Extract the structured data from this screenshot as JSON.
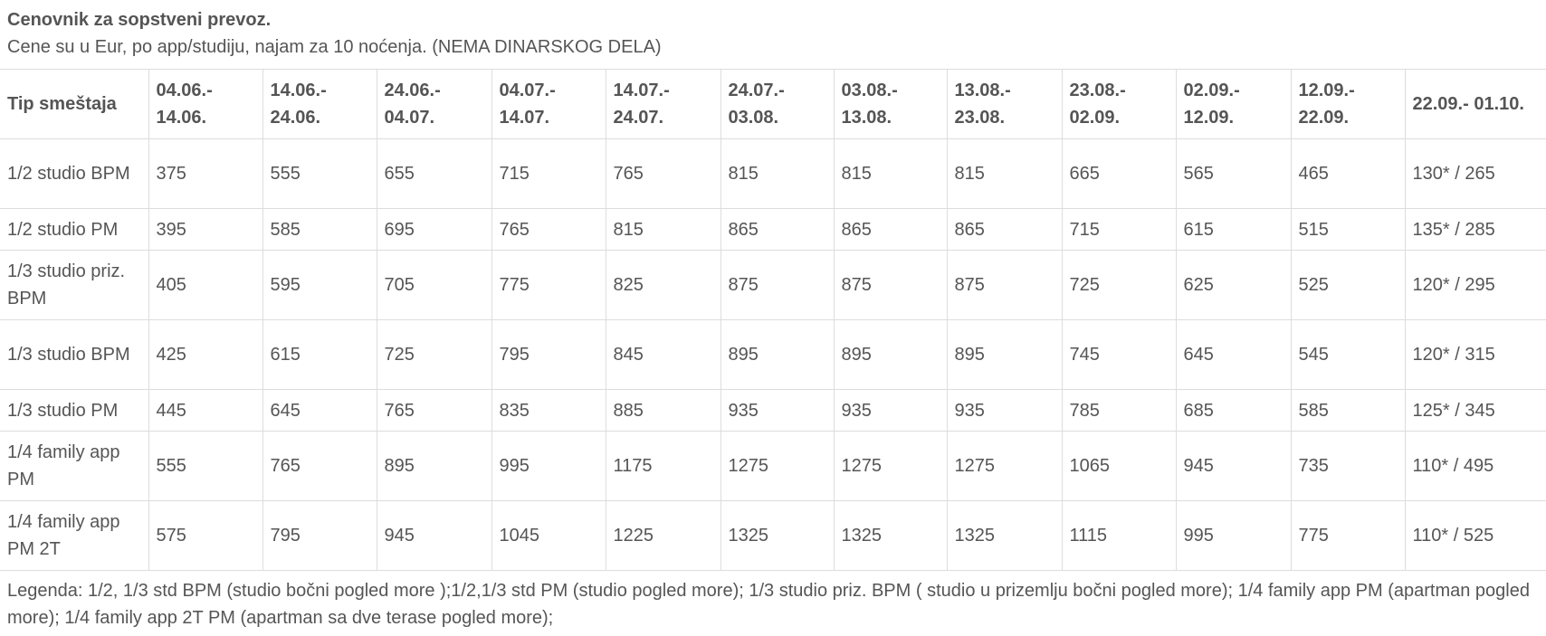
{
  "title": "Cenovnik za sopstveni prevoz.",
  "subtitle": "Cene su u Eur, po app/studiju, najam za 10 noćenja. (NEMA DINARSKOG DELA)",
  "table": {
    "header": [
      "Tip smeštaja",
      "04.06.- 14.06.",
      "14.06.- 24.06.",
      "24.06.- 04.07.",
      "04.07.- 14.07.",
      "14.07.- 24.07.",
      "24.07.- 03.08.",
      "03.08.- 13.08.",
      "13.08.- 23.08.",
      "23.08.- 02.09.",
      "02.09.- 12.09.",
      "12.09.- 22.09.",
      "22.09.- 01.10."
    ],
    "rows": [
      [
        "1/2 studio BPM",
        375,
        555,
        655,
        715,
        765,
        815,
        815,
        815,
        665,
        565,
        465,
        "130* / 265"
      ],
      [
        "1/2 studio PM",
        395,
        585,
        695,
        765,
        815,
        865,
        865,
        865,
        715,
        615,
        515,
        "135* / 285"
      ],
      [
        "1/3 studio priz. BPM",
        405,
        595,
        705,
        775,
        825,
        875,
        875,
        875,
        725,
        625,
        525,
        "120* / 295"
      ],
      [
        "1/3 studio BPM",
        425,
        615,
        725,
        795,
        845,
        895,
        895,
        895,
        745,
        645,
        545,
        "120* / 315"
      ],
      [
        "1/3 studio PM",
        445,
        645,
        765,
        835,
        885,
        935,
        935,
        935,
        785,
        685,
        585,
        "125* / 345"
      ],
      [
        "1/4 family app PM",
        555,
        765,
        895,
        995,
        1175,
        1275,
        1275,
        1275,
        1065,
        945,
        735,
        "110* / 495"
      ],
      [
        "1/4 family app PM 2T",
        575,
        795,
        945,
        1045,
        1225,
        1325,
        1325,
        1325,
        1115,
        995,
        775,
        "110* / 525"
      ]
    ]
  },
  "legend": "Legenda: 1/2, 1/3 std BPM (studio bočni pogled more );1/2,1/3 std PM (studio pogled more); 1/3 studio priz. BPM ( studio u prizemlju bočni pogled more); 1/4 family app PM (apartman pogled more); 1/4 family app 2T PM (apartman sa dve terase pogled more);"
}
